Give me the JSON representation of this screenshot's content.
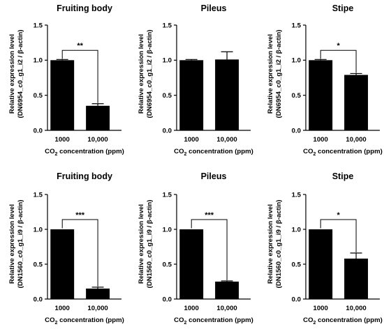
{
  "chart_data": [
    {
      "type": "bar",
      "title": "Fruiting body",
      "ylabel_line1": "Relative expression level",
      "ylabel_line2": "(DN6954_c0_g1_i2 / β-actin)",
      "xlabel_main": "CO",
      "xlabel_sub": "2",
      "xlabel_rest": " concentration (ppm)",
      "categories": [
        "1000",
        "10,000"
      ],
      "values": [
        1.0,
        0.35
      ],
      "errors": [
        0.01,
        0.03
      ],
      "ylim": [
        0,
        1.5
      ],
      "yticks": [
        "0.0",
        "0.5",
        "1.0",
        "1.5"
      ],
      "significance": "**"
    },
    {
      "type": "bar",
      "title": "Pileus",
      "ylabel_line1": "Relative expression level",
      "ylabel_line2": "(DN6954_c0_g1_i2 / β-actin)",
      "xlabel_main": "CO",
      "xlabel_sub": "2",
      "xlabel_rest": " concentration (ppm)",
      "categories": [
        "1000",
        "10,000"
      ],
      "values": [
        1.0,
        1.01
      ],
      "errors": [
        0.01,
        0.11
      ],
      "ylim": [
        0,
        1.5
      ],
      "yticks": [
        "0.0",
        "0.5",
        "1.0",
        "1.5"
      ],
      "significance": ""
    },
    {
      "type": "bar",
      "title": "Stipe",
      "ylabel_line1": "Relative expression level",
      "ylabel_line2": "(DN6954_c0_g1_i2 / β-actin)",
      "xlabel_main": "CO",
      "xlabel_sub": "2",
      "xlabel_rest": " concentration (ppm)",
      "categories": [
        "1000",
        "10,000"
      ],
      "values": [
        1.0,
        0.79
      ],
      "errors": [
        0.01,
        0.02
      ],
      "ylim": [
        0,
        1.5
      ],
      "yticks": [
        "0.0",
        "0.5",
        "1.0",
        "1.5"
      ],
      "significance": "*"
    },
    {
      "type": "bar",
      "title": "Fruiting body",
      "ylabel_line1": "Relative expression level",
      "ylabel_line2": "(DN1560_c0_g1_i9 / β-actin)",
      "xlabel_main": "CO",
      "xlabel_sub": "2",
      "xlabel_rest": " concentration (ppm)",
      "categories": [
        "1000",
        "10,000"
      ],
      "values": [
        1.0,
        0.15
      ],
      "errors": [
        0.005,
        0.02
      ],
      "ylim": [
        0,
        1.5
      ],
      "yticks": [
        "0.0",
        "0.5",
        "1.0",
        "1.5"
      ],
      "significance": "***"
    },
    {
      "type": "bar",
      "title": "Pileus",
      "ylabel_line1": "Relative expression level",
      "ylabel_line2": "(DN1560_c0_g1_i9 / β-actin)",
      "xlabel_main": "CO",
      "xlabel_sub": "2",
      "xlabel_rest": " concentration (ppm)",
      "categories": [
        "1000",
        "10,000"
      ],
      "values": [
        1.0,
        0.25
      ],
      "errors": [
        0.005,
        0.01
      ],
      "ylim": [
        0,
        1.5
      ],
      "yticks": [
        "0.0",
        "0.5",
        "1.0",
        "1.5"
      ],
      "significance": "***"
    },
    {
      "type": "bar",
      "title": "Stipe",
      "ylabel_line1": "Relative expression level",
      "ylabel_line2": "(DN1560_c0_g1_i9 / β-actin)",
      "xlabel_main": "CO",
      "xlabel_sub": "2",
      "xlabel_rest": " concentration (ppm)",
      "categories": [
        "1000",
        "10,000"
      ],
      "values": [
        1.0,
        0.58
      ],
      "errors": [
        0.005,
        0.08
      ],
      "ylim": [
        0,
        1.5
      ],
      "yticks": [
        "0.0",
        "0.5",
        "1.0",
        "1.5"
      ],
      "significance": "*"
    }
  ],
  "colors": {
    "bar": "#000000",
    "axis": "#000000",
    "background": "#ffffff"
  }
}
